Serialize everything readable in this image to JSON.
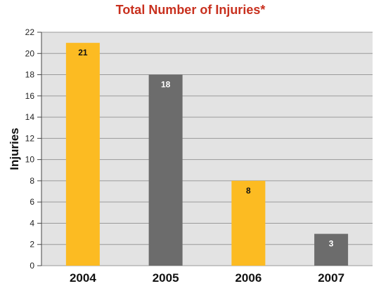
{
  "chart_data": {
    "type": "bar",
    "title": "Total Number of Injuries*",
    "xlabel": "",
    "ylabel": "Injuries",
    "categories": [
      "2004",
      "2005",
      "2006",
      "2007"
    ],
    "values": [
      21,
      18,
      8,
      3
    ],
    "bar_colors": [
      "#fcbb22",
      "#6c6c6c",
      "#fcbb22",
      "#6c6c6c"
    ],
    "data_label_colors": [
      "#111111",
      "#ffffff",
      "#111111",
      "#ffffff"
    ],
    "ylim": [
      0,
      22
    ],
    "yticks": [
      0,
      2,
      4,
      6,
      8,
      10,
      12,
      14,
      16,
      18,
      20,
      22
    ],
    "grid": true,
    "plot_background": "#e3e3e3",
    "grid_color": "#9a9a9a",
    "legend": "none"
  }
}
